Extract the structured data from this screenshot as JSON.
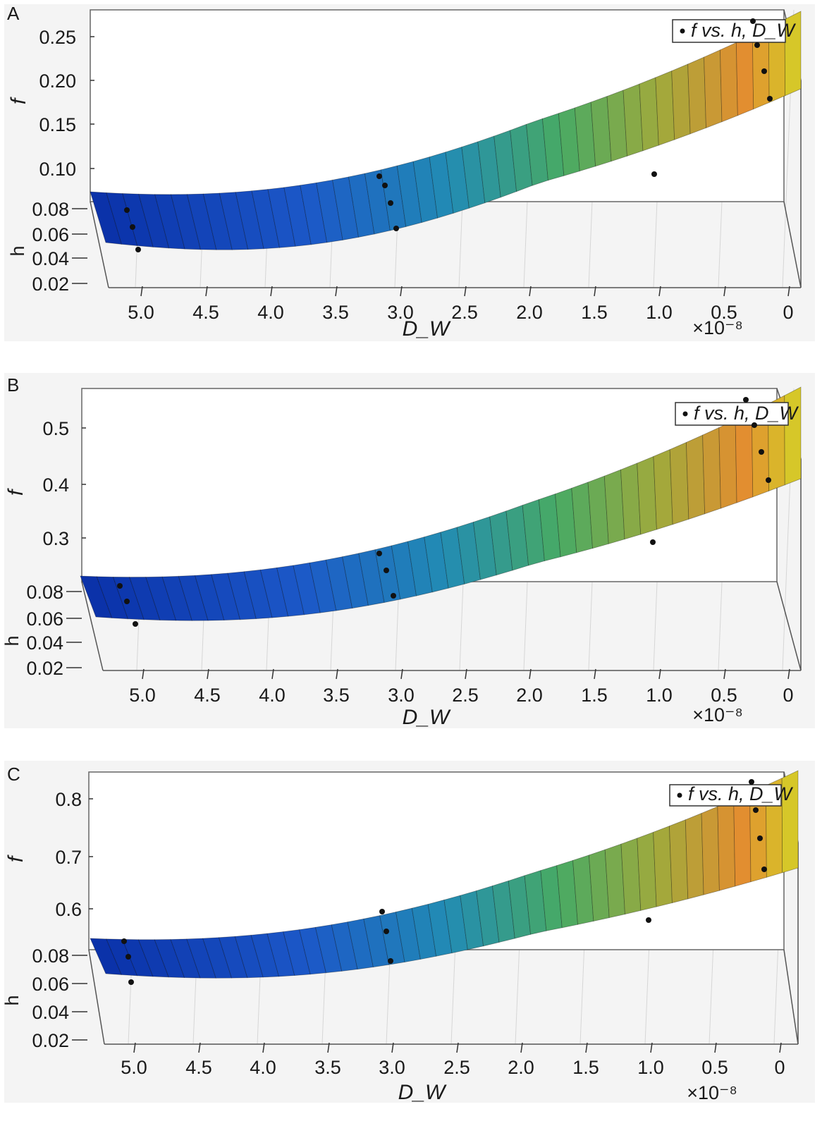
{
  "chart_data": [
    {
      "panel_label": "A",
      "type": "scatter",
      "surface": "quadratic fit colored blue to yellow",
      "xlabel": "D_W",
      "x_multiplier": "×10⁻⁸",
      "x_ticks": [
        "5.0",
        "4.5",
        "4.0",
        "3.5",
        "3.0",
        "2.5",
        "2.0",
        "1.5",
        "1.0",
        "0.5",
        "0"
      ],
      "f_label": "f",
      "f_ticks": [
        "0.25",
        "0.20",
        "0.15",
        "0.10"
      ],
      "h_label": "h",
      "h_ticks": [
        "0.08",
        "0.06",
        "0.04",
        "0.02"
      ],
      "legend": "f vs. h, D_W",
      "series": [
        {
          "points": [
            [
              5.1,
              0.08,
              0.075
            ],
            [
              5.05,
              0.06,
              0.065
            ],
            [
              5.0,
              0.04,
              0.055
            ],
            [
              3.15,
              0.08,
              0.098
            ],
            [
              3.1,
              0.06,
              0.09
            ],
            [
              3.05,
              0.04,
              0.082
            ],
            [
              3.0,
              0.02,
              0.075
            ],
            [
              1.0,
              0.06,
              0.1
            ],
            [
              0.25,
              0.08,
              0.27
            ],
            [
              0.2,
              0.06,
              0.24
            ],
            [
              0.15,
              0.04,
              0.21
            ],
            [
              0.1,
              0.02,
              0.19
            ]
          ]
        }
      ]
    },
    {
      "panel_label": "B",
      "type": "scatter",
      "surface": "quadratic fit colored blue to yellow",
      "xlabel": "D_W",
      "x_multiplier": "×10⁻⁸",
      "x_ticks": [
        "5.0",
        "4.5",
        "4.0",
        "3.5",
        "3.0",
        "2.5",
        "2.0",
        "1.5",
        "1.0",
        "0.5",
        "0"
      ],
      "f_label": "f",
      "f_ticks": [
        "0.5",
        "0.4",
        "0.3"
      ],
      "h_label": "h",
      "h_ticks": [
        "0.08",
        "0.06",
        "0.04",
        "0.02"
      ],
      "legend": "f vs. h, D_W",
      "series": [
        {
          "points": [
            [
              5.15,
              0.08,
              0.24
            ],
            [
              5.1,
              0.06,
              0.22
            ],
            [
              5.05,
              0.04,
              0.2
            ],
            [
              3.15,
              0.08,
              0.28
            ],
            [
              3.1,
              0.06,
              0.26
            ],
            [
              3.05,
              0.04,
              0.24
            ],
            [
              1.0,
              0.06,
              0.3
            ],
            [
              0.3,
              0.08,
              0.55
            ],
            [
              0.25,
              0.06,
              0.5
            ],
            [
              0.2,
              0.04,
              0.46
            ],
            [
              0.15,
              0.02,
              0.42
            ]
          ]
        }
      ]
    },
    {
      "panel_label": "C",
      "type": "scatter",
      "surface": "quadratic fit colored blue to yellow",
      "xlabel": "D_W",
      "x_multiplier": "×10⁻⁸",
      "x_ticks": [
        "5.0",
        "4.5",
        "4.0",
        "3.5",
        "3.0",
        "2.5",
        "2.0",
        "1.5",
        "1.0",
        "0.5",
        "0"
      ],
      "f_label": "f",
      "f_ticks": [
        "0.8",
        "0.7",
        "0.6"
      ],
      "h_label": "h",
      "h_ticks": [
        "0.08",
        "0.06",
        "0.04",
        "0.02"
      ],
      "legend": "f vs. h, D_W",
      "series": [
        {
          "points": [
            [
              5.1,
              0.08,
              0.55
            ],
            [
              5.05,
              0.06,
              0.53
            ],
            [
              5.0,
              0.04,
              0.51
            ],
            [
              3.1,
              0.08,
              0.6
            ],
            [
              3.05,
              0.06,
              0.58
            ],
            [
              3.0,
              0.04,
              0.56
            ],
            [
              1.0,
              0.06,
              0.58
            ],
            [
              0.2,
              0.08,
              0.83
            ],
            [
              0.15,
              0.06,
              0.78
            ],
            [
              0.1,
              0.04,
              0.74
            ],
            [
              0.05,
              0.02,
              0.7
            ]
          ]
        }
      ]
    }
  ],
  "colors": {
    "surface_low": "#0a3aa8",
    "surface_mid": "#2ba36a",
    "surface_high": "#e8a030",
    "surface_top": "#c8d020",
    "point": "#111111",
    "background": "#f4f4f4"
  }
}
